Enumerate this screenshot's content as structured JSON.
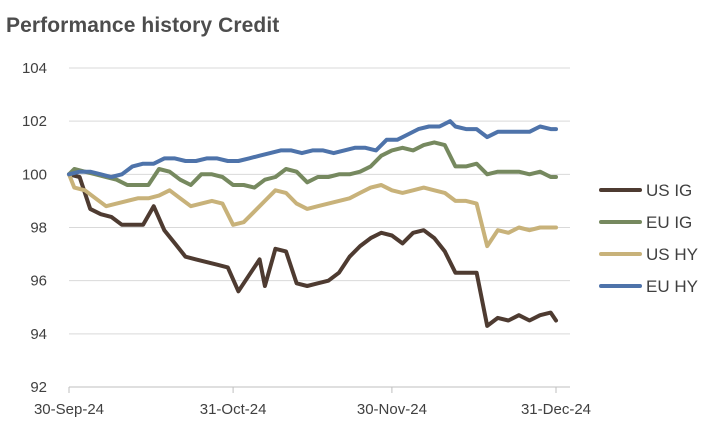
{
  "chart_data": {
    "type": "line",
    "title": "Performance history Credit",
    "xlabel": "",
    "ylabel": "",
    "ylim": [
      92,
      104
    ],
    "yticks": [
      92,
      94,
      96,
      98,
      100,
      102,
      104
    ],
    "x_start": "30-Sep-24",
    "x_end": "31-Dec-24",
    "xticks": [
      "30-Sep-24",
      "31-Oct-24",
      "30-Nov-24",
      "31-Dec-24"
    ],
    "legend_position": "right",
    "grid": true,
    "series": [
      {
        "name": "US IG",
        "color": "#4e3b31",
        "points": [
          [
            "30-Sep-24",
            100.0
          ],
          [
            "02-Oct-24",
            99.9
          ],
          [
            "04-Oct-24",
            98.7
          ],
          [
            "06-Oct-24",
            98.5
          ],
          [
            "08-Oct-24",
            98.4
          ],
          [
            "10-Oct-24",
            98.1
          ],
          [
            "12-Oct-24",
            98.1
          ],
          [
            "14-Oct-24",
            98.1
          ],
          [
            "16-Oct-24",
            98.8
          ],
          [
            "18-Oct-24",
            97.9
          ],
          [
            "20-Oct-24",
            97.4
          ],
          [
            "22-Oct-24",
            96.9
          ],
          [
            "24-Oct-24",
            96.8
          ],
          [
            "26-Oct-24",
            96.7
          ],
          [
            "28-Oct-24",
            96.6
          ],
          [
            "30-Oct-24",
            96.5
          ],
          [
            "01-Nov-24",
            95.6
          ],
          [
            "03-Nov-24",
            96.2
          ],
          [
            "05-Nov-24",
            96.8
          ],
          [
            "06-Nov-24",
            95.8
          ],
          [
            "08-Nov-24",
            97.2
          ],
          [
            "10-Nov-24",
            97.1
          ],
          [
            "12-Nov-24",
            95.9
          ],
          [
            "14-Nov-24",
            95.8
          ],
          [
            "16-Nov-24",
            95.9
          ],
          [
            "18-Nov-24",
            96.0
          ],
          [
            "20-Nov-24",
            96.3
          ],
          [
            "22-Nov-24",
            96.9
          ],
          [
            "24-Nov-24",
            97.3
          ],
          [
            "26-Nov-24",
            97.6
          ],
          [
            "28-Nov-24",
            97.8
          ],
          [
            "30-Nov-24",
            97.7
          ],
          [
            "02-Dec-24",
            97.4
          ],
          [
            "04-Dec-24",
            97.8
          ],
          [
            "06-Dec-24",
            97.9
          ],
          [
            "08-Dec-24",
            97.6
          ],
          [
            "10-Dec-24",
            97.1
          ],
          [
            "12-Dec-24",
            96.3
          ],
          [
            "14-Dec-24",
            96.3
          ],
          [
            "16-Dec-24",
            96.3
          ],
          [
            "18-Dec-24",
            94.3
          ],
          [
            "20-Dec-24",
            94.6
          ],
          [
            "22-Dec-24",
            94.5
          ],
          [
            "24-Dec-24",
            94.7
          ],
          [
            "26-Dec-24",
            94.5
          ],
          [
            "28-Dec-24",
            94.7
          ],
          [
            "30-Dec-24",
            94.8
          ],
          [
            "31-Dec-24",
            94.5
          ]
        ]
      },
      {
        "name": "EU IG",
        "color": "#76895f",
        "points": [
          [
            "30-Sep-24",
            100.0
          ],
          [
            "01-Oct-24",
            100.2
          ],
          [
            "03-Oct-24",
            100.1
          ],
          [
            "05-Oct-24",
            100.0
          ],
          [
            "07-Oct-24",
            99.9
          ],
          [
            "09-Oct-24",
            99.8
          ],
          [
            "11-Oct-24",
            99.6
          ],
          [
            "13-Oct-24",
            99.6
          ],
          [
            "15-Oct-24",
            99.6
          ],
          [
            "17-Oct-24",
            100.2
          ],
          [
            "19-Oct-24",
            100.1
          ],
          [
            "21-Oct-24",
            99.8
          ],
          [
            "23-Oct-24",
            99.6
          ],
          [
            "25-Oct-24",
            100.0
          ],
          [
            "27-Oct-24",
            100.0
          ],
          [
            "29-Oct-24",
            99.9
          ],
          [
            "31-Oct-24",
            99.6
          ],
          [
            "02-Nov-24",
            99.6
          ],
          [
            "04-Nov-24",
            99.5
          ],
          [
            "06-Nov-24",
            99.8
          ],
          [
            "08-Nov-24",
            99.9
          ],
          [
            "10-Nov-24",
            100.2
          ],
          [
            "12-Nov-24",
            100.1
          ],
          [
            "14-Nov-24",
            99.7
          ],
          [
            "16-Nov-24",
            99.9
          ],
          [
            "18-Nov-24",
            99.9
          ],
          [
            "20-Nov-24",
            100.0
          ],
          [
            "22-Nov-24",
            100.0
          ],
          [
            "24-Nov-24",
            100.1
          ],
          [
            "26-Nov-24",
            100.3
          ],
          [
            "28-Nov-24",
            100.7
          ],
          [
            "30-Nov-24",
            100.9
          ],
          [
            "02-Dec-24",
            101.0
          ],
          [
            "04-Dec-24",
            100.9
          ],
          [
            "06-Dec-24",
            101.1
          ],
          [
            "08-Dec-24",
            101.2
          ],
          [
            "10-Dec-24",
            101.1
          ],
          [
            "12-Dec-24",
            100.3
          ],
          [
            "14-Dec-24",
            100.3
          ],
          [
            "16-Dec-24",
            100.4
          ],
          [
            "18-Dec-24",
            100.0
          ],
          [
            "20-Dec-24",
            100.1
          ],
          [
            "22-Dec-24",
            100.1
          ],
          [
            "24-Dec-24",
            100.1
          ],
          [
            "26-Dec-24",
            100.0
          ],
          [
            "28-Dec-24",
            100.1
          ],
          [
            "30-Dec-24",
            99.9
          ],
          [
            "31-Dec-24",
            99.9
          ]
        ]
      },
      {
        "name": "US HY",
        "color": "#c8b27a",
        "points": [
          [
            "30-Sep-24",
            100.0
          ],
          [
            "01-Oct-24",
            99.5
          ],
          [
            "03-Oct-24",
            99.4
          ],
          [
            "05-Oct-24",
            99.1
          ],
          [
            "07-Oct-24",
            98.8
          ],
          [
            "09-Oct-24",
            98.9
          ],
          [
            "11-Oct-24",
            99.0
          ],
          [
            "13-Oct-24",
            99.1
          ],
          [
            "15-Oct-24",
            99.1
          ],
          [
            "17-Oct-24",
            99.2
          ],
          [
            "19-Oct-24",
            99.4
          ],
          [
            "21-Oct-24",
            99.1
          ],
          [
            "23-Oct-24",
            98.8
          ],
          [
            "25-Oct-24",
            98.9
          ],
          [
            "27-Oct-24",
            99.0
          ],
          [
            "29-Oct-24",
            98.9
          ],
          [
            "31-Oct-24",
            98.1
          ],
          [
            "02-Nov-24",
            98.2
          ],
          [
            "04-Nov-24",
            98.6
          ],
          [
            "06-Nov-24",
            99.0
          ],
          [
            "08-Nov-24",
            99.4
          ],
          [
            "10-Nov-24",
            99.3
          ],
          [
            "12-Nov-24",
            98.9
          ],
          [
            "14-Nov-24",
            98.7
          ],
          [
            "16-Nov-24",
            98.8
          ],
          [
            "18-Nov-24",
            98.9
          ],
          [
            "20-Nov-24",
            99.0
          ],
          [
            "22-Nov-24",
            99.1
          ],
          [
            "24-Nov-24",
            99.3
          ],
          [
            "26-Nov-24",
            99.5
          ],
          [
            "28-Nov-24",
            99.6
          ],
          [
            "30-Nov-24",
            99.4
          ],
          [
            "02-Dec-24",
            99.3
          ],
          [
            "04-Dec-24",
            99.4
          ],
          [
            "06-Dec-24",
            99.5
          ],
          [
            "08-Dec-24",
            99.4
          ],
          [
            "10-Dec-24",
            99.3
          ],
          [
            "12-Dec-24",
            99.0
          ],
          [
            "14-Dec-24",
            99.0
          ],
          [
            "16-Dec-24",
            98.9
          ],
          [
            "18-Dec-24",
            97.3
          ],
          [
            "20-Dec-24",
            97.9
          ],
          [
            "22-Dec-24",
            97.8
          ],
          [
            "24-Dec-24",
            98.0
          ],
          [
            "26-Dec-24",
            97.9
          ],
          [
            "28-Dec-24",
            98.0
          ],
          [
            "30-Dec-24",
            98.0
          ],
          [
            "31-Dec-24",
            98.0
          ]
        ]
      },
      {
        "name": "EU HY",
        "color": "#4e73aa",
        "points": [
          [
            "30-Sep-24",
            100.0
          ],
          [
            "02-Oct-24",
            100.1
          ],
          [
            "04-Oct-24",
            100.1
          ],
          [
            "06-Oct-24",
            100.0
          ],
          [
            "08-Oct-24",
            99.9
          ],
          [
            "10-Oct-24",
            100.0
          ],
          [
            "12-Oct-24",
            100.3
          ],
          [
            "14-Oct-24",
            100.4
          ],
          [
            "16-Oct-24",
            100.4
          ],
          [
            "18-Oct-24",
            100.6
          ],
          [
            "20-Oct-24",
            100.6
          ],
          [
            "22-Oct-24",
            100.5
          ],
          [
            "24-Oct-24",
            100.5
          ],
          [
            "26-Oct-24",
            100.6
          ],
          [
            "28-Oct-24",
            100.6
          ],
          [
            "30-Oct-24",
            100.5
          ],
          [
            "01-Nov-24",
            100.5
          ],
          [
            "03-Nov-24",
            100.6
          ],
          [
            "05-Nov-24",
            100.7
          ],
          [
            "07-Nov-24",
            100.8
          ],
          [
            "09-Nov-24",
            100.9
          ],
          [
            "11-Nov-24",
            100.9
          ],
          [
            "13-Nov-24",
            100.8
          ],
          [
            "15-Nov-24",
            100.9
          ],
          [
            "17-Nov-24",
            100.9
          ],
          [
            "19-Nov-24",
            100.8
          ],
          [
            "21-Nov-24",
            100.9
          ],
          [
            "23-Nov-24",
            101.0
          ],
          [
            "25-Nov-24",
            101.0
          ],
          [
            "27-Nov-24",
            100.9
          ],
          [
            "29-Nov-24",
            101.3
          ],
          [
            "01-Dec-24",
            101.3
          ],
          [
            "03-Dec-24",
            101.5
          ],
          [
            "05-Dec-24",
            101.7
          ],
          [
            "07-Dec-24",
            101.8
          ],
          [
            "09-Dec-24",
            101.8
          ],
          [
            "11-Dec-24",
            102.0
          ],
          [
            "12-Dec-24",
            101.8
          ],
          [
            "14-Dec-24",
            101.7
          ],
          [
            "16-Dec-24",
            101.7
          ],
          [
            "18-Dec-24",
            101.4
          ],
          [
            "20-Dec-24",
            101.6
          ],
          [
            "22-Dec-24",
            101.6
          ],
          [
            "24-Dec-24",
            101.6
          ],
          [
            "26-Dec-24",
            101.6
          ],
          [
            "28-Dec-24",
            101.8
          ],
          [
            "30-Dec-24",
            101.7
          ],
          [
            "31-Dec-24",
            101.7
          ]
        ]
      }
    ]
  }
}
